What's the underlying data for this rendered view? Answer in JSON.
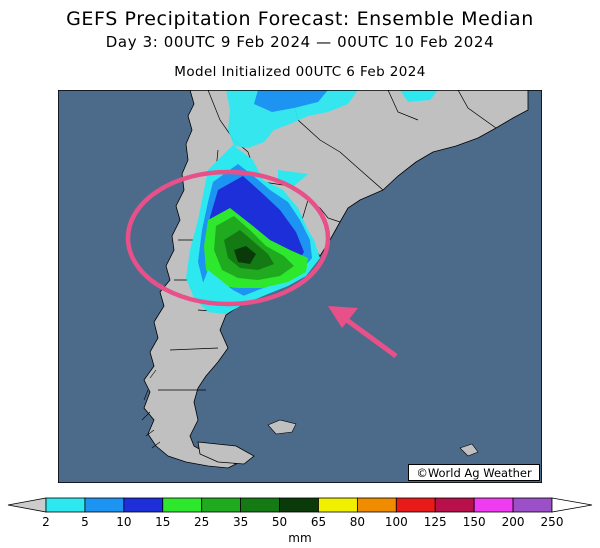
{
  "header": {
    "title": "GEFS Precipitation Forecast: Ensemble Median",
    "subtitle": "Day 3: 00UTC 9 Feb 2024 — 00UTC 10 Feb 2024",
    "init": "Model Initialized 00UTC 6 Feb 2024"
  },
  "map": {
    "ocean_color": "#4c6b8b",
    "land_color": "#c0c0c0",
    "credit": "©World Ag Weather",
    "annotation_color": "#e8508a"
  },
  "legend": {
    "unit": "mm",
    "colors": [
      "#cccccc",
      "#2ee8f0",
      "#1d94f2",
      "#1d2fd8",
      "#2ee82e",
      "#1faa1f",
      "#147a14",
      "#0a3a0a",
      "#f0f000",
      "#f08c00",
      "#e81a1a",
      "#b8104a",
      "#f03cf0",
      "#9c50c8",
      "#ffffff"
    ],
    "ticks": [
      "2",
      "5",
      "10",
      "15",
      "25",
      "35",
      "50",
      "65",
      "80",
      "100",
      "125",
      "150",
      "200",
      "250"
    ]
  }
}
